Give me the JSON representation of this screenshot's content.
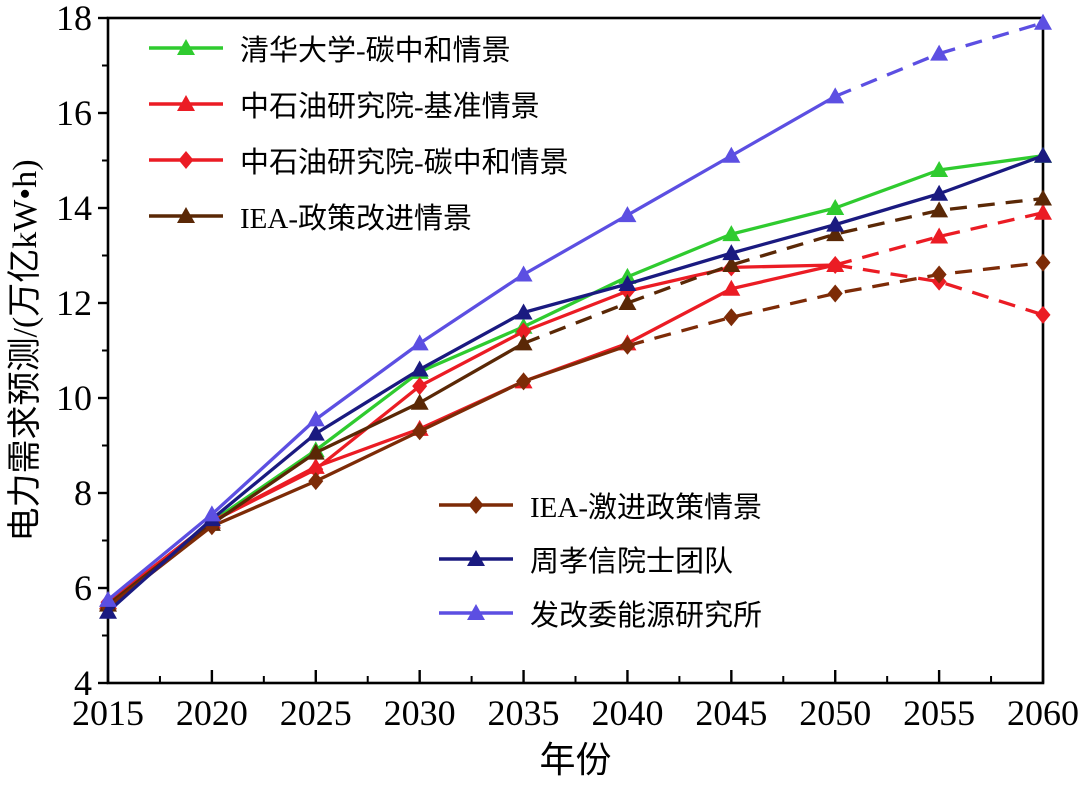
{
  "figure": {
    "background": "#ffffff",
    "axis_color": "#000000"
  },
  "chart_data": {
    "type": "line",
    "title": "",
    "xlabel": "年份",
    "ylabel": "电力需求预测/(万亿kW•h)",
    "xlim": [
      2015,
      2060
    ],
    "ylim": [
      4,
      18
    ],
    "x_ticks": [
      2015,
      2020,
      2025,
      2030,
      2035,
      2040,
      2045,
      2050,
      2055,
      2060
    ],
    "y_ticks": [
      4,
      6,
      8,
      10,
      12,
      14,
      16,
      18
    ],
    "grid": "off",
    "legend_position": "top-left and center-bottom, no frame",
    "x": [
      2015,
      2020,
      2025,
      2030,
      2035,
      2040,
      2045,
      2050,
      2055,
      2060
    ],
    "series": [
      {
        "name": "清华大学-碳中和情景",
        "color": "#2FCB2F",
        "marker": "triangle",
        "line_style": "solid",
        "dash_from": null,
        "legend_group": "top",
        "values": [
          5.7,
          7.4,
          8.9,
          10.55,
          11.5,
          12.55,
          13.45,
          14.0,
          14.8,
          15.1
        ]
      },
      {
        "name": "中石油研究院-基准情景",
        "color": "#EB1C24",
        "marker": "triangle",
        "line_style": "solid then dashed",
        "dash_from": 2050,
        "legend_group": "top",
        "values": [
          5.7,
          7.4,
          8.55,
          9.35,
          10.35,
          11.15,
          12.3,
          12.8,
          13.4,
          13.9
        ]
      },
      {
        "name": "中石油研究院-碳中和情景",
        "color": "#EB1C24",
        "marker": "diamond",
        "line_style": "solid then dashed",
        "dash_from": 2050,
        "legend_group": "top",
        "values": [
          5.7,
          7.4,
          8.5,
          10.25,
          11.4,
          12.25,
          12.75,
          12.8,
          12.45,
          11.75
        ]
      },
      {
        "name": "IEA-政策改进情景",
        "color": "#5A2806",
        "marker": "triangle",
        "line_style": "solid then dashed",
        "dash_from": 2035,
        "legend_group": "top",
        "values": [
          5.65,
          7.35,
          8.85,
          9.9,
          11.15,
          12.0,
          12.8,
          13.45,
          13.95,
          14.2
        ]
      },
      {
        "name": "IEA-激进政策情景",
        "color": "#7D2B07",
        "marker": "diamond",
        "line_style": "solid then dashed",
        "dash_from": 2040,
        "legend_group": "bottom",
        "values": [
          5.6,
          7.3,
          8.25,
          9.3,
          10.35,
          11.1,
          11.7,
          12.2,
          12.6,
          12.85
        ]
      },
      {
        "name": "周孝信院士团队",
        "color": "#1A1A80",
        "marker": "triangle",
        "line_style": "solid",
        "dash_from": null,
        "legend_group": "bottom",
        "values": [
          5.5,
          7.45,
          9.25,
          10.6,
          11.8,
          12.4,
          13.05,
          13.65,
          14.3,
          15.1
        ]
      },
      {
        "name": "发改委能源研究所",
        "color": "#5C4FE2",
        "marker": "triangle",
        "line_style": "solid then dashed",
        "dash_from": 2050,
        "legend_group": "bottom",
        "values": [
          5.75,
          7.55,
          9.55,
          11.15,
          12.6,
          13.85,
          15.1,
          16.35,
          17.25,
          17.9
        ]
      }
    ]
  }
}
